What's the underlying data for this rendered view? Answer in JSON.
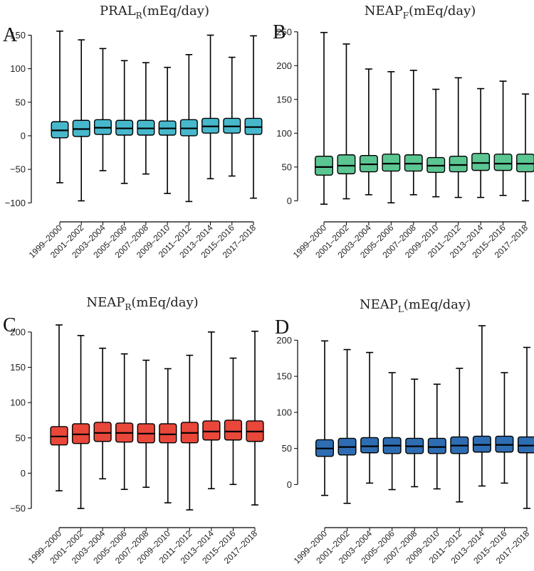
{
  "chart_data": [
    {
      "type": "boxplot",
      "letter": "A",
      "title_main": "PRAL",
      "title_sub": "R",
      "title_unit": "(mEq/day)",
      "color": "#47b8cc",
      "categories": [
        "1999–2000",
        "2001–2002",
        "2003–2004",
        "2005–2006",
        "2007–2008",
        "2009–2010",
        "2011–2012",
        "2013–2014",
        "2015–2016",
        "2017–2018"
      ],
      "ylim": [
        -105,
        160
      ],
      "yticks": [
        -100,
        -50,
        0,
        50,
        100,
        150
      ],
      "series": [
        {
          "min": -70,
          "q1": -3,
          "median": 8,
          "q3": 21,
          "max": 156
        },
        {
          "min": -97,
          "q1": -1,
          "median": 10,
          "q3": 23,
          "max": 143
        },
        {
          "min": -52,
          "q1": 2,
          "median": 12,
          "q3": 24,
          "max": 130
        },
        {
          "min": -71,
          "q1": 1,
          "median": 11,
          "q3": 23,
          "max": 112
        },
        {
          "min": -57,
          "q1": 1,
          "median": 11,
          "q3": 23,
          "max": 109
        },
        {
          "min": -86,
          "q1": 1,
          "median": 11,
          "q3": 22,
          "max": 102
        },
        {
          "min": -98,
          "q1": 0,
          "median": 11,
          "q3": 24,
          "max": 121
        },
        {
          "min": -64,
          "q1": 4,
          "median": 14,
          "q3": 26,
          "max": 150
        },
        {
          "min": -60,
          "q1": 4,
          "median": 14,
          "q3": 26,
          "max": 117
        },
        {
          "min": -93,
          "q1": 2,
          "median": 13,
          "q3": 26,
          "max": 149
        }
      ]
    },
    {
      "type": "boxplot",
      "letter": "B",
      "title_main": "NEAP",
      "title_sub": "F",
      "title_unit": "(mEq/day)",
      "color": "#5bc692",
      "categories": [
        "1999–2000",
        "2001–2002",
        "2003–2004",
        "2005–2006",
        "2007–2008",
        "2009–2010",
        "2011–2012",
        "2013–2014",
        "2015–2016",
        "2017–2018"
      ],
      "ylim": [
        -8,
        255
      ],
      "yticks": [
        0,
        50,
        100,
        150,
        200,
        250
      ],
      "series": [
        {
          "min": -5,
          "q1": 38,
          "median": 50,
          "q3": 66,
          "max": 249
        },
        {
          "min": 3,
          "q1": 40,
          "median": 52,
          "q3": 68,
          "max": 232
        },
        {
          "min": 9,
          "q1": 43,
          "median": 54,
          "q3": 67,
          "max": 195
        },
        {
          "min": -3,
          "q1": 44,
          "median": 55,
          "q3": 69,
          "max": 191
        },
        {
          "min": 9,
          "q1": 44,
          "median": 55,
          "q3": 68,
          "max": 193
        },
        {
          "min": 6,
          "q1": 42,
          "median": 52,
          "q3": 64,
          "max": 165
        },
        {
          "min": 5,
          "q1": 43,
          "median": 53,
          "q3": 66,
          "max": 182
        },
        {
          "min": 5,
          "q1": 45,
          "median": 56,
          "q3": 70,
          "max": 166
        },
        {
          "min": 8,
          "q1": 45,
          "median": 55,
          "q3": 69,
          "max": 177
        },
        {
          "min": 0,
          "q1": 43,
          "median": 55,
          "q3": 69,
          "max": 158
        }
      ]
    },
    {
      "type": "boxplot",
      "letter": "C",
      "title_main": "NEAP",
      "title_sub": "R",
      "title_unit": "(mEq/day)",
      "color": "#e8473a",
      "categories": [
        "1999–2000",
        "2001–2002",
        "2003–2004",
        "2005–2006",
        "2007–2008",
        "2009–2010",
        "2011–2012",
        "2013–2014",
        "2015–2016",
        "2017–2018"
      ],
      "ylim": [
        -55,
        215
      ],
      "yticks": [
        -50,
        0,
        50,
        100,
        150,
        200
      ],
      "series": [
        {
          "min": -25,
          "q1": 40,
          "median": 52,
          "q3": 66,
          "max": 210
        },
        {
          "min": -50,
          "q1": 42,
          "median": 55,
          "q3": 70,
          "max": 195
        },
        {
          "min": -8,
          "q1": 45,
          "median": 57,
          "q3": 72,
          "max": 177
        },
        {
          "min": -23,
          "q1": 44,
          "median": 57,
          "q3": 71,
          "max": 169
        },
        {
          "min": -20,
          "q1": 43,
          "median": 56,
          "q3": 70,
          "max": 160
        },
        {
          "min": -42,
          "q1": 43,
          "median": 55,
          "q3": 70,
          "max": 148
        },
        {
          "min": -52,
          "q1": 43,
          "median": 57,
          "q3": 72,
          "max": 167
        },
        {
          "min": -22,
          "q1": 47,
          "median": 59,
          "q3": 74,
          "max": 200
        },
        {
          "min": -16,
          "q1": 47,
          "median": 59,
          "q3": 75,
          "max": 163
        },
        {
          "min": -45,
          "q1": 45,
          "median": 59,
          "q3": 74,
          "max": 201
        }
      ]
    },
    {
      "type": "boxplot",
      "letter": "D",
      "title_main": "NEAP",
      "title_sub": "L",
      "title_unit": "(mEq/day)",
      "color": "#2e6db2",
      "categories": [
        "1999–2000",
        "2001–2002",
        "2003–2004",
        "2005–2006",
        "2007–2008",
        "2009–2010",
        "2011–2012",
        "2013–2014",
        "2015–2016",
        "2017–2018"
      ],
      "ylim": [
        -38,
        226
      ],
      "yticks": [
        0,
        50,
        100,
        150,
        200
      ],
      "series": [
        {
          "min": -15,
          "q1": 39,
          "median": 50,
          "q3": 62,
          "max": 199
        },
        {
          "min": -26,
          "q1": 41,
          "median": 52,
          "q3": 64,
          "max": 187
        },
        {
          "min": 2,
          "q1": 44,
          "median": 53,
          "q3": 65,
          "max": 183
        },
        {
          "min": -7,
          "q1": 43,
          "median": 54,
          "q3": 65,
          "max": 155
        },
        {
          "min": -3,
          "q1": 43,
          "median": 53,
          "q3": 64,
          "max": 146
        },
        {
          "min": -6,
          "q1": 43,
          "median": 52,
          "q3": 64,
          "max": 139
        },
        {
          "min": -24,
          "q1": 43,
          "median": 54,
          "q3": 66,
          "max": 161
        },
        {
          "min": -2,
          "q1": 45,
          "median": 55,
          "q3": 67,
          "max": 220
        },
        {
          "min": 2,
          "q1": 45,
          "median": 55,
          "q3": 67,
          "max": 155
        },
        {
          "min": -33,
          "q1": 44,
          "median": 54,
          "q3": 66,
          "max": 190
        }
      ]
    }
  ]
}
